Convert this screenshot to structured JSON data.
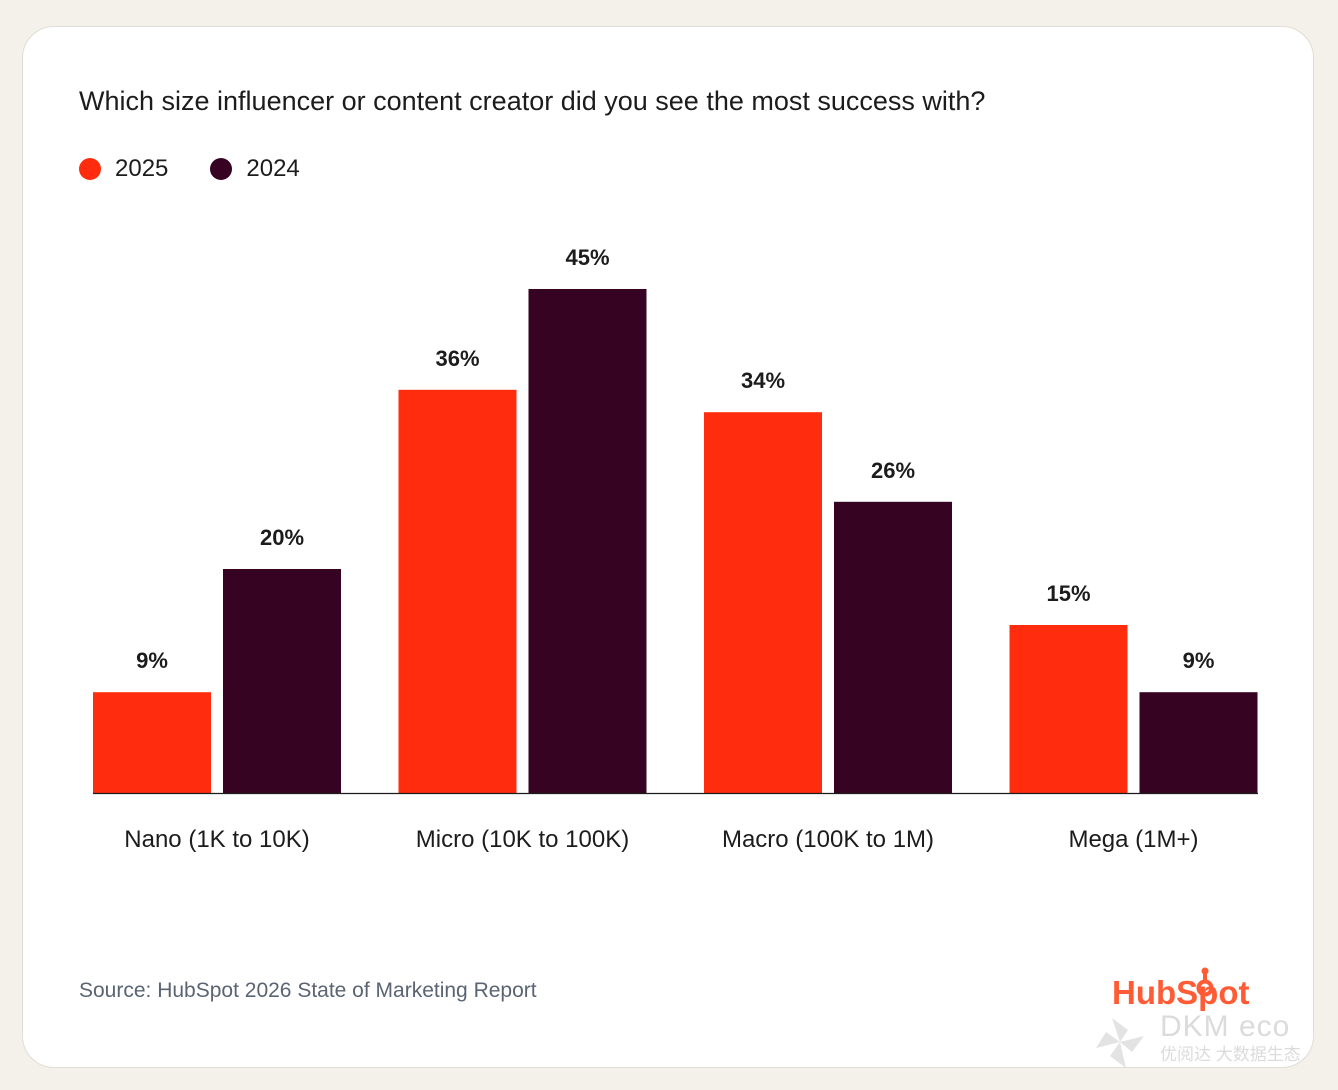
{
  "chart_data": {
    "type": "bar",
    "title": "Which size influencer or content creator did you see the most success with?",
    "categories": [
      "Nano (1K to 10K)",
      "Micro (10K to 100K)",
      "Macro (100K to 1M)",
      "Mega (1M+)"
    ],
    "series": [
      {
        "name": "2025",
        "color": "#ff2d0d",
        "values": [
          9,
          36,
          34,
          15
        ],
        "labels": [
          "9%",
          "36%",
          "34%",
          "15%"
        ]
      },
      {
        "name": "2024",
        "color": "#360322",
        "values": [
          20,
          45,
          26,
          9
        ],
        "labels": [
          "20%",
          "45%",
          "26%",
          "9%"
        ]
      }
    ],
    "ylim": [
      0,
      45
    ],
    "grid": false,
    "legend_position": "top-left"
  },
  "legend": {
    "items": [
      {
        "label": "2025",
        "color": "#ff2d0d"
      },
      {
        "label": "2024",
        "color": "#360322"
      }
    ]
  },
  "footer": {
    "source": "Source: HubSpot 2026 State of Marketing Report",
    "brand": "HubSpot",
    "brand_color": "#ff5c35"
  },
  "watermark": {
    "main": "DKM eco",
    "sub": "优阅达 大数据生态",
    "icon": "pinwheel-icon"
  }
}
